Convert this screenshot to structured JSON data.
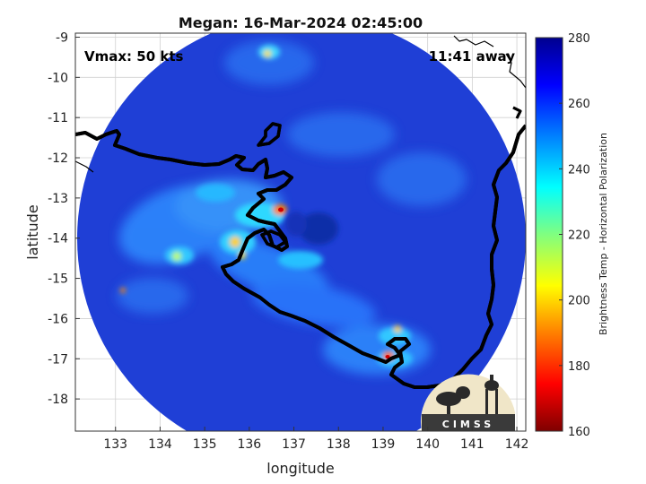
{
  "title": "Megan: 16-Mar-2024 02:45:00",
  "vmax_text": "Vmax: 50 kts",
  "away_text": "11:41 away",
  "x_axis": {
    "label": "longitude",
    "ticks": [
      133,
      134,
      135,
      136,
      137,
      138,
      139,
      140,
      141,
      142
    ]
  },
  "y_axis": {
    "label": "latitude",
    "ticks": [
      -9,
      -10,
      -11,
      -12,
      -13,
      -14,
      -15,
      -16,
      -17,
      -18
    ]
  },
  "colorbar": {
    "label": "Brightness Temp - Horizontal Polarization",
    "ticks": [
      280,
      260,
      240,
      220,
      200,
      180,
      160
    ],
    "range": [
      160,
      280
    ],
    "colormap": [
      "#7f0000",
      "#ff0000",
      "#ff8000",
      "#ffff00",
      "#80ff80",
      "#00ffff",
      "#0080ff",
      "#0000ff",
      "#00008f"
    ]
  },
  "map": {
    "lon_range": [
      132.1,
      142.2
    ],
    "lat_range": [
      -18.8,
      -8.9
    ],
    "background_color": "#1f3fd6",
    "grid": true
  },
  "logo": {
    "text": "CIMSS",
    "name": "cimss-logo"
  }
}
